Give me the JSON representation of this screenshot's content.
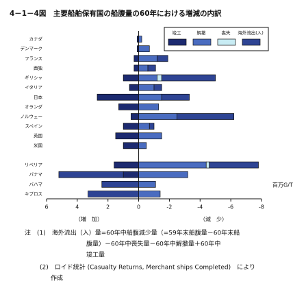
{
  "chart_data": {
    "type": "stacked-barh",
    "title": "4－1－4図　主要船舶保有国の船腹量の60年における増減の内訳",
    "unit": "百万G/T",
    "increase_label": "（増　加）",
    "decrease_label": "（減　少）",
    "categories": [
      "カナダ",
      "デンマーク",
      "フランス",
      "西独",
      "ギリシャ",
      "イタリア",
      "日本",
      "オランダ",
      "ノルウェー",
      "スペイン",
      "英国",
      "米国",
      null,
      "リベリア",
      "パナマ",
      "バハマ",
      "キプロス"
    ],
    "series": [
      {
        "name": "竣工",
        "color": "#1c2a70",
        "values": [
          0.1,
          0.1,
          0.3,
          0.3,
          1.0,
          0.6,
          2.7,
          1.3,
          0.5,
          1.0,
          1.5,
          1.0,
          null,
          1.6,
          1.0,
          0,
          0
        ]
      },
      {
        "name": "解撤",
        "color": "#4a6cc0",
        "values": [
          -0.2,
          -0.7,
          -1.2,
          -0.6,
          -1.2,
          -1.0,
          -1.5,
          -1.3,
          -2.5,
          -0.7,
          -1.5,
          -0.5,
          null,
          -4.4,
          -3.2,
          -1.1,
          -1.4
        ]
      },
      {
        "name": "喪失",
        "color": "#c8ecf4",
        "values": [
          0,
          0,
          0,
          0,
          -0.3,
          0,
          0,
          0,
          0,
          0,
          0,
          0,
          null,
          -0.2,
          0,
          0,
          0
        ]
      },
      {
        "name": "海外流出(入)",
        "color": "#2e4494",
        "values": [
          0,
          0,
          -0.7,
          -0.5,
          -3.5,
          -0.5,
          -1.8,
          0,
          -3.7,
          -0.3,
          0,
          0,
          null,
          -3.2,
          4.2,
          2.4,
          3.3
        ]
      }
    ],
    "xlim": [
      6,
      -8
    ],
    "xticks": [
      6,
      4,
      2,
      0,
      -2,
      -4,
      -6,
      -8
    ],
    "notes": [
      "注　(1)　海外流出（入）量=60年中船腹減少量（=59年末船腹量－60年末船",
      "腹量）－60年中喪失量－60年中解撤量＋60年中",
      "竣工量",
      "(2)　ロイド統計 (Casualty Returns, Merchant ships Completed)　により",
      "作成"
    ]
  }
}
